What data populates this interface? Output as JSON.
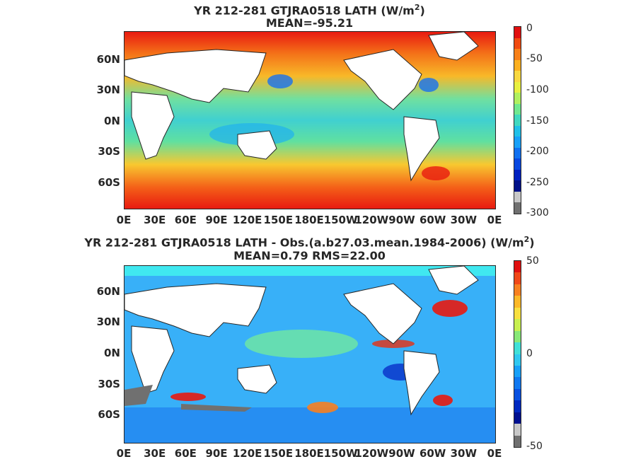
{
  "panel1": {
    "title_line1": "YR 212-281 GTJRA0518  LATH (W/m",
    "title_sup": "2",
    "title_close": ")",
    "title_line2": "MEAN=-95.21",
    "lat_labels": [
      "60N",
      "30N",
      "0N",
      "30S",
      "60S"
    ],
    "lon_labels": [
      "0E",
      "30E",
      "60E",
      "90E",
      "120E",
      "150E",
      "180E",
      "150W",
      "120W",
      "90W",
      "60W",
      "30W",
      "0E"
    ],
    "colorbar_labels": [
      "0",
      "-50",
      "-100",
      "-150",
      "-200",
      "-250",
      "-300"
    ],
    "colorbar_colors": [
      "#e11010",
      "#f04a10",
      "#f88018",
      "#fcb020",
      "#f8d840",
      "#e8f040",
      "#b0f060",
      "#70e890",
      "#40d8c0",
      "#20c0e8",
      "#18a0f8",
      "#1070f0",
      "#0848e0",
      "#0020c0",
      "#001088",
      "#c8c8c8",
      "#707070"
    ]
  },
  "panel2": {
    "title_line1": "YR 212-281 GTJRA0518 LATH - Obs.(a.b27.03.mean.1984-2006) (W/m",
    "title_sup": "2",
    "title_close": ")",
    "title_line2": "MEAN=0.79 RMS=22.00",
    "lat_labels": [
      "60N",
      "30N",
      "0N",
      "30S",
      "60S"
    ],
    "lon_labels": [
      "0E",
      "30E",
      "60E",
      "90E",
      "120E",
      "150E",
      "180E",
      "150W",
      "120W",
      "90W",
      "60W",
      "30W",
      "0E"
    ],
    "colorbar_labels": [
      "50",
      "0",
      "-50"
    ],
    "colorbar_colors": [
      "#e01010",
      "#f04818",
      "#f88020",
      "#fcb828",
      "#f8e040",
      "#c8f050",
      "#88e878",
      "#40e0d8",
      "#30c8f0",
      "#18a0f8",
      "#1078f0",
      "#0850e0",
      "#0028c0",
      "#001090",
      "#c8c8c8",
      "#707070"
    ]
  }
}
